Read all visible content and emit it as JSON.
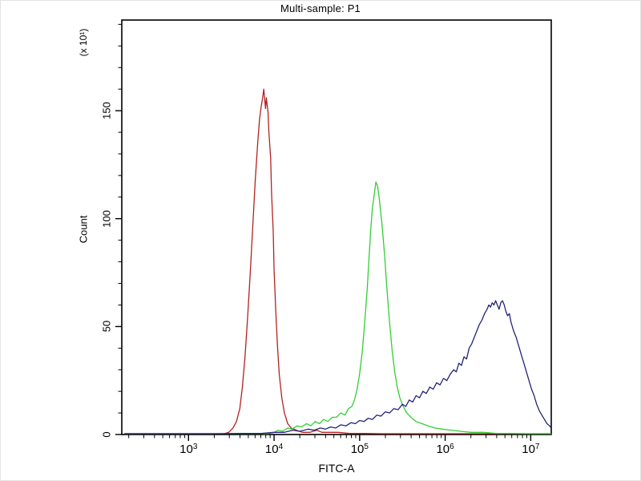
{
  "window": {
    "title": "Multi-sample: P1"
  },
  "chart_data": {
    "type": "line",
    "subtype": "flow-cytometry-histogram-overlay",
    "title": "Multi-sample: P1",
    "xlabel": "FITC-A",
    "ylabel": "Count",
    "ylabel_multiplier": "(x 10¹)",
    "x_scale": "log10",
    "x_log_range": [
      2.22,
      7.24
    ],
    "x_major_tick_exponents": [
      3,
      4,
      5,
      6,
      7
    ],
    "ylim": [
      0,
      192
    ],
    "y_major_ticks": [
      0,
      50,
      100,
      150
    ],
    "y_minor_step": 10,
    "grid": false,
    "legend": "none",
    "axis_color": "#000000",
    "series": [
      {
        "name": "red-sample",
        "color": "#b22222",
        "peak_x": 7800,
        "peak_count": 160,
        "points": [
          [
            2.25,
            0
          ],
          [
            3.1,
            0
          ],
          [
            3.3,
            0
          ],
          [
            3.42,
            0
          ],
          [
            3.47,
            1
          ],
          [
            3.52,
            3
          ],
          [
            3.56,
            6
          ],
          [
            3.6,
            12
          ],
          [
            3.63,
            22
          ],
          [
            3.66,
            36
          ],
          [
            3.69,
            54
          ],
          [
            3.72,
            74
          ],
          [
            3.75,
            96
          ],
          [
            3.78,
            118
          ],
          [
            3.81,
            136
          ],
          [
            3.83,
            146
          ],
          [
            3.85,
            152
          ],
          [
            3.87,
            157
          ],
          [
            3.88,
            160
          ],
          [
            3.9,
            151
          ],
          [
            3.91,
            156
          ],
          [
            3.93,
            149
          ],
          [
            3.94,
            140
          ],
          [
            3.96,
            128
          ],
          [
            3.97,
            112
          ],
          [
            3.99,
            94
          ],
          [
            4.0,
            76
          ],
          [
            4.02,
            57
          ],
          [
            4.04,
            41
          ],
          [
            4.06,
            28
          ],
          [
            4.09,
            17
          ],
          [
            4.12,
            10
          ],
          [
            4.16,
            5
          ],
          [
            4.2,
            3
          ],
          [
            4.26,
            2
          ],
          [
            4.33,
            1
          ],
          [
            4.42,
            1
          ],
          [
            4.5,
            2
          ],
          [
            4.56,
            1
          ],
          [
            4.65,
            1
          ],
          [
            4.75,
            1
          ],
          [
            4.88,
            0.5
          ],
          [
            5.05,
            0.5
          ],
          [
            5.25,
            0
          ],
          [
            5.6,
            0
          ],
          [
            7.24,
            0
          ]
        ]
      },
      {
        "name": "green-sample",
        "color": "#35cc35",
        "peak_x": 155000,
        "peak_count": 117,
        "points": [
          [
            2.25,
            0
          ],
          [
            3.8,
            0
          ],
          [
            3.92,
            0
          ],
          [
            4.0,
            1
          ],
          [
            4.05,
            2
          ],
          [
            4.1,
            1.5
          ],
          [
            4.16,
            3
          ],
          [
            4.21,
            2.5
          ],
          [
            4.27,
            4
          ],
          [
            4.32,
            3.5
          ],
          [
            4.38,
            5
          ],
          [
            4.43,
            4
          ],
          [
            4.48,
            6
          ],
          [
            4.53,
            5
          ],
          [
            4.58,
            7
          ],
          [
            4.63,
            6
          ],
          [
            4.68,
            8
          ],
          [
            4.73,
            8
          ],
          [
            4.78,
            10
          ],
          [
            4.83,
            9
          ],
          [
            4.87,
            12
          ],
          [
            4.91,
            13
          ],
          [
            4.94,
            16
          ],
          [
            4.97,
            21
          ],
          [
            5.0,
            28
          ],
          [
            5.03,
            38
          ],
          [
            5.06,
            52
          ],
          [
            5.09,
            68
          ],
          [
            5.11,
            82
          ],
          [
            5.13,
            95
          ],
          [
            5.15,
            105
          ],
          [
            5.17,
            111
          ],
          [
            5.19,
            117
          ],
          [
            5.21,
            115
          ],
          [
            5.23,
            109
          ],
          [
            5.26,
            98
          ],
          [
            5.29,
            84
          ],
          [
            5.32,
            67
          ],
          [
            5.35,
            52
          ],
          [
            5.38,
            39
          ],
          [
            5.41,
            29
          ],
          [
            5.44,
            22
          ],
          [
            5.47,
            17
          ],
          [
            5.51,
            13
          ],
          [
            5.55,
            10
          ],
          [
            5.6,
            8
          ],
          [
            5.66,
            6
          ],
          [
            5.73,
            5
          ],
          [
            5.8,
            4
          ],
          [
            5.88,
            3
          ],
          [
            5.97,
            2.5
          ],
          [
            6.07,
            2
          ],
          [
            6.18,
            1.5
          ],
          [
            6.3,
            1
          ],
          [
            6.45,
            1
          ],
          [
            6.6,
            0.5
          ],
          [
            6.78,
            0.5
          ],
          [
            6.95,
            0
          ],
          [
            7.24,
            0
          ]
        ]
      },
      {
        "name": "blue-sample",
        "color": "#23237a",
        "peak_x": 4400000,
        "peak_count": 62,
        "points": [
          [
            2.25,
            0
          ],
          [
            3.3,
            0
          ],
          [
            3.6,
            0.5
          ],
          [
            3.85,
            0.5
          ],
          [
            4.0,
            1
          ],
          [
            4.12,
            1
          ],
          [
            4.22,
            2
          ],
          [
            4.3,
            1.5
          ],
          [
            4.4,
            2.5
          ],
          [
            4.47,
            2
          ],
          [
            4.54,
            3
          ],
          [
            4.6,
            2.5
          ],
          [
            4.66,
            3.5
          ],
          [
            4.72,
            3
          ],
          [
            4.78,
            4.5
          ],
          [
            4.84,
            4
          ],
          [
            4.9,
            5.5
          ],
          [
            4.95,
            5
          ],
          [
            5.0,
            6.5
          ],
          [
            5.05,
            6
          ],
          [
            5.1,
            7.5
          ],
          [
            5.15,
            7
          ],
          [
            5.2,
            9
          ],
          [
            5.25,
            8.5
          ],
          [
            5.3,
            10.5
          ],
          [
            5.35,
            10
          ],
          [
            5.4,
            12
          ],
          [
            5.45,
            11.5
          ],
          [
            5.5,
            14
          ],
          [
            5.54,
            13
          ],
          [
            5.58,
            16
          ],
          [
            5.62,
            15
          ],
          [
            5.66,
            18
          ],
          [
            5.7,
            17
          ],
          [
            5.74,
            20
          ],
          [
            5.78,
            19
          ],
          [
            5.82,
            22
          ],
          [
            5.86,
            21
          ],
          [
            5.9,
            24
          ],
          [
            5.94,
            23
          ],
          [
            5.98,
            26
          ],
          [
            6.02,
            25
          ],
          [
            6.06,
            28
          ],
          [
            6.1,
            30
          ],
          [
            6.13,
            29
          ],
          [
            6.16,
            33
          ],
          [
            6.19,
            32
          ],
          [
            6.22,
            36
          ],
          [
            6.25,
            35
          ],
          [
            6.28,
            40
          ],
          [
            6.31,
            42
          ],
          [
            6.34,
            45
          ],
          [
            6.37,
            48
          ],
          [
            6.4,
            51
          ],
          [
            6.43,
            53
          ],
          [
            6.46,
            56
          ],
          [
            6.49,
            58
          ],
          [
            6.51,
            60
          ],
          [
            6.53,
            59
          ],
          [
            6.55,
            61
          ],
          [
            6.57,
            60
          ],
          [
            6.59,
            62
          ],
          [
            6.61,
            60
          ],
          [
            6.63,
            58
          ],
          [
            6.65,
            61
          ],
          [
            6.67,
            62
          ],
          [
            6.69,
            60
          ],
          [
            6.71,
            57
          ],
          [
            6.73,
            55
          ],
          [
            6.75,
            56
          ],
          [
            6.77,
            52
          ],
          [
            6.8,
            48
          ],
          [
            6.83,
            45
          ],
          [
            6.86,
            41
          ],
          [
            6.89,
            37
          ],
          [
            6.92,
            33
          ],
          [
            6.95,
            29
          ],
          [
            6.98,
            25
          ],
          [
            7.01,
            21
          ],
          [
            7.04,
            18
          ],
          [
            7.07,
            14
          ],
          [
            7.1,
            11
          ],
          [
            7.13,
            9
          ],
          [
            7.16,
            7
          ],
          [
            7.19,
            5
          ],
          [
            7.22,
            4
          ],
          [
            7.24,
            3
          ]
        ]
      }
    ]
  }
}
